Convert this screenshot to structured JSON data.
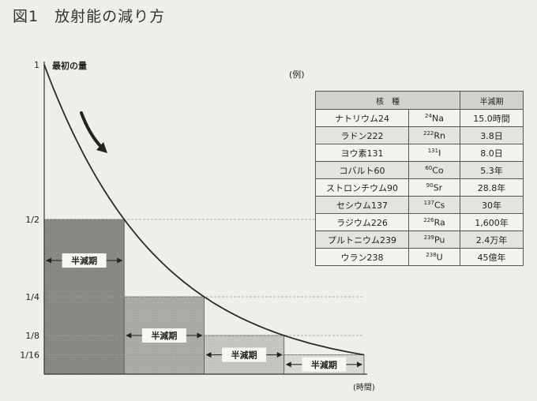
{
  "figure": {
    "title": "図1　放射能の減り方",
    "example_label": "(例)"
  },
  "chart_data": {
    "type": "line",
    "title": "図1　放射能の減り方",
    "xlabel": "(時間)",
    "ylabel": "",
    "x_unit": "half-lives",
    "x": [
      0,
      0.25,
      0.5,
      0.75,
      1,
      1.5,
      2,
      2.5,
      3,
      3.5,
      4
    ],
    "series": [
      {
        "values": [
          1,
          0.8409,
          0.7071,
          0.5946,
          0.5,
          0.3536,
          0.25,
          0.1768,
          0.125,
          0.0884,
          0.0625
        ]
      }
    ],
    "yticks": [
      {
        "label": "1",
        "value": 1
      },
      {
        "label": "1/2",
        "value": 0.5
      },
      {
        "label": "1/4",
        "value": 0.25
      },
      {
        "label": "1/8",
        "value": 0.125
      },
      {
        "label": "1/16",
        "value": 0.0625
      }
    ],
    "ylim": [
      0,
      1
    ],
    "xlim": [
      0,
      4
    ],
    "annotations": {
      "start_label": "最初の量",
      "half_life_label": "半減期"
    },
    "half_life_blocks": [
      {
        "x_start": 0,
        "x_end": 1,
        "height": 0.5
      },
      {
        "x_start": 1,
        "x_end": 2,
        "height": 0.25
      },
      {
        "x_start": 2,
        "x_end": 3,
        "height": 0.125
      },
      {
        "x_start": 3,
        "x_end": 4,
        "height": 0.0625
      }
    ]
  },
  "table": {
    "headers": [
      "核　種",
      "半減期"
    ],
    "rows": [
      {
        "name": "ナトリウム24",
        "mass": "24",
        "element": "Na",
        "half_life": "15.0時間"
      },
      {
        "name": "ラドン222",
        "mass": "222",
        "element": "Rn",
        "half_life": "3.8日"
      },
      {
        "name": "ヨウ素131",
        "mass": "131",
        "element": "I",
        "half_life": "8.0日"
      },
      {
        "name": "コバルト60",
        "mass": "60",
        "element": "Co",
        "half_life": "5.3年"
      },
      {
        "name": "ストロンチウム90",
        "mass": "90",
        "element": "Sr",
        "half_life": "28.8年"
      },
      {
        "name": "セシウム137",
        "mass": "137",
        "element": "Cs",
        "half_life": "30年"
      },
      {
        "name": "ラジウム226",
        "mass": "226",
        "element": "Ra",
        "half_life": "1,600年"
      },
      {
        "name": "プルトニウム239",
        "mass": "239",
        "element": "Pu",
        "half_life": "2.4万年"
      },
      {
        "name": "ウラン238",
        "mass": "238",
        "element": "U",
        "half_life": "45億年"
      }
    ]
  },
  "colors": {
    "block1": "#8c8a85",
    "block2": "#aeaca7",
    "block3": "#c9c7c2",
    "block4": "#dddbd6",
    "curve": "#2a2a2a",
    "background": "#efefe9"
  }
}
